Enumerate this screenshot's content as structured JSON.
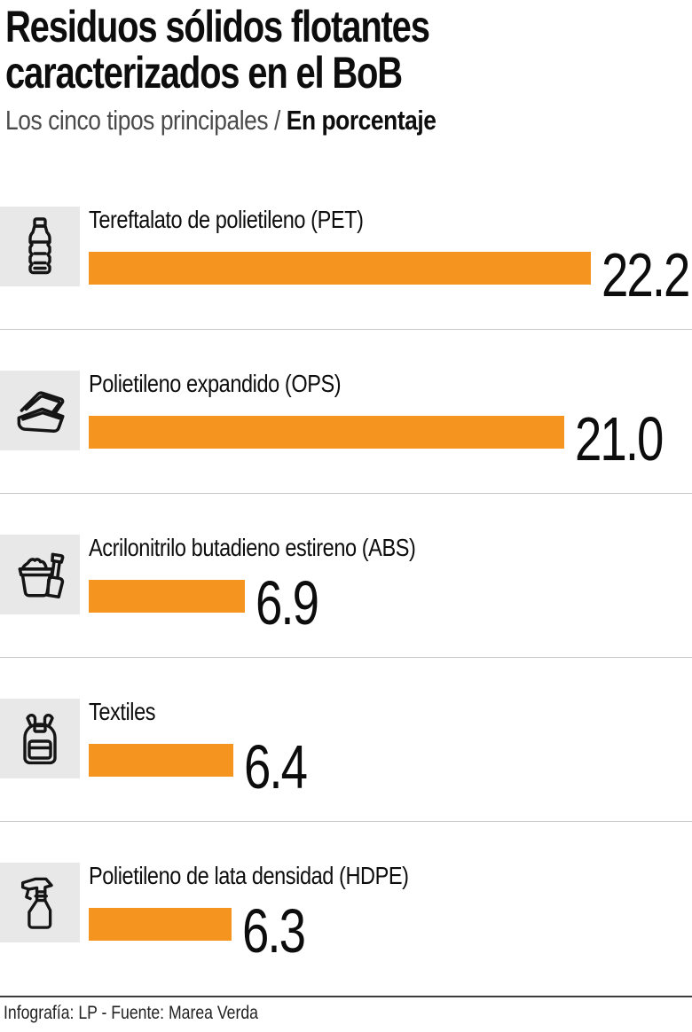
{
  "header": {
    "title_line1": "Residuos sólidos flotantes",
    "title_line2": "caracterizados en el BoB",
    "subtitle_regular": "Los cinco tipos principales / ",
    "subtitle_bold": "En porcentaje"
  },
  "chart_data": {
    "type": "bar",
    "orientation": "horizontal",
    "title": "Residuos sólidos flotantes caracterizados en el BoB",
    "subtitle": "Los cinco tipos principales / En porcentaje",
    "unit": "percent",
    "categories": [
      "Tereftalato de polietileno (PET)",
      "Polietileno expandido (OPS)",
      "Acrilonitrilo butadieno estireno (ABS)",
      "Textiles",
      "Polietileno de lata densidad (HDPE)"
    ],
    "values": [
      22.2,
      21.0,
      6.9,
      6.4,
      6.3
    ],
    "value_labels": [
      "22.2",
      "21.0",
      "6.9",
      "6.4",
      "6.3"
    ],
    "icons": [
      "water-bottle-icon",
      "takeout-container-icon",
      "sand-bucket-shovel-icon",
      "backpack-icon",
      "spray-bottle-icon"
    ],
    "bar_color": "#F5941F",
    "icon_box_color": "#e8e8e8",
    "xlim": [
      0,
      22.2
    ],
    "grid": false,
    "legend": false
  },
  "footer": {
    "credit": "Infografía: LP - Fuente: Marea Verda"
  }
}
